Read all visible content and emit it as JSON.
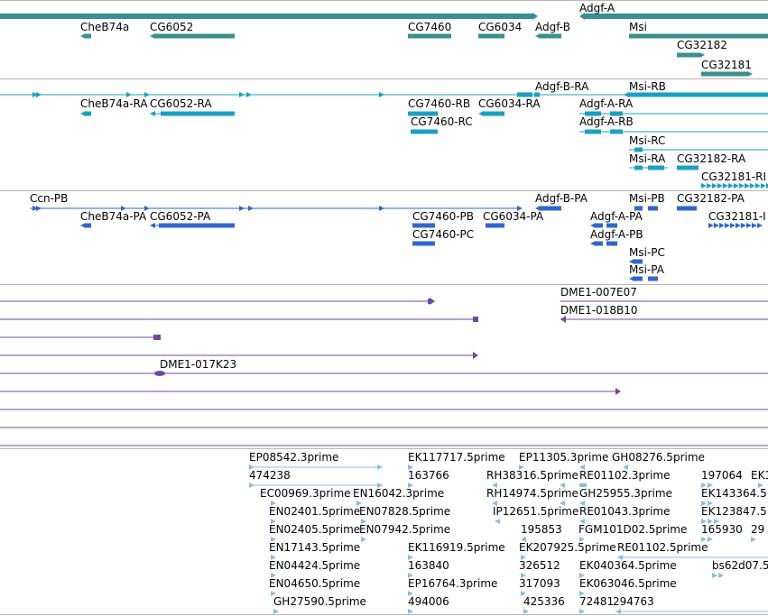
{
  "colors": {
    "gene": "#3a8f8f",
    "transcript_flybase": "#1ca0c0",
    "transcript_maker": "#3366cc",
    "clone": "#6e4b9e",
    "est": "#88bde0",
    "divider": "#b8b8b8"
  },
  "genes_track": {
    "labels": [
      "Adgf-A",
      "CheB74a",
      "CG6052",
      "CG7460",
      "CG6034",
      "Adgf-B",
      "Msi",
      "CG32182",
      "CG32181"
    ]
  },
  "transcripts_track": {
    "labels": [
      "Adgf-B-RA",
      "Msi-RB",
      "CheB74a-RA",
      "CG6052-RA",
      "CG7460-RB",
      "CG6034-RA",
      "Adgf-A-RA",
      "CG7460-RC",
      "Adgf-A-RB",
      "Msi-RC",
      "Msi-RA",
      "CG32182-RA",
      "CG32181-RI"
    ]
  },
  "predictions_track": {
    "labels": [
      "Ccn-PB",
      "Adgf-B-PA",
      "Msi-PB",
      "CG32182-PA",
      "CheB74a-PA",
      "CG6052-PA",
      "CG7460-PB",
      "CG6034-PA",
      "Adgf-A-PA",
      "CG32181-I",
      "CG7460-PC",
      "Adgf-A-PB",
      "Msi-PC",
      "Msi-PA"
    ]
  },
  "clones_track": {
    "labels": [
      "DME1-007E07",
      "DME1-018B10",
      "DME1-017K23"
    ]
  },
  "est_track": {
    "labels": [
      "EP08542.3prime",
      "EK117717.5prime",
      "EP11305.3prime",
      "GH08276.5prime",
      "474238",
      "163766",
      "RH38316.5prime",
      "RE01102.3prime",
      "197064",
      "EK1",
      "EC00969.3prime",
      "EN16042.3prime",
      "RH14974.5prime",
      "GH25955.3prime",
      "EK143364.5",
      "EN02401.5prime",
      "EN07828.5prime",
      "IP12651.5prime",
      "RE01043.3prime",
      "EK123847.5",
      "EN02405.5prime",
      "EN07942.5prime",
      "195853",
      "FGM101D02.5prime",
      "165930",
      "29",
      "EN17143.5prime",
      "EK116919.5prime",
      "EK207925.5prime",
      "RE01102.5prime",
      "EN04424.5prime",
      "163840",
      "326512",
      "EK040364.5prime",
      "bs62d07.5",
      "EN04650.5prime",
      "EP16764.3prime",
      "317093",
      "EK063046.5prime",
      "GH27590.5prime",
      "494006",
      "425336",
      "72481",
      "294763"
    ]
  }
}
